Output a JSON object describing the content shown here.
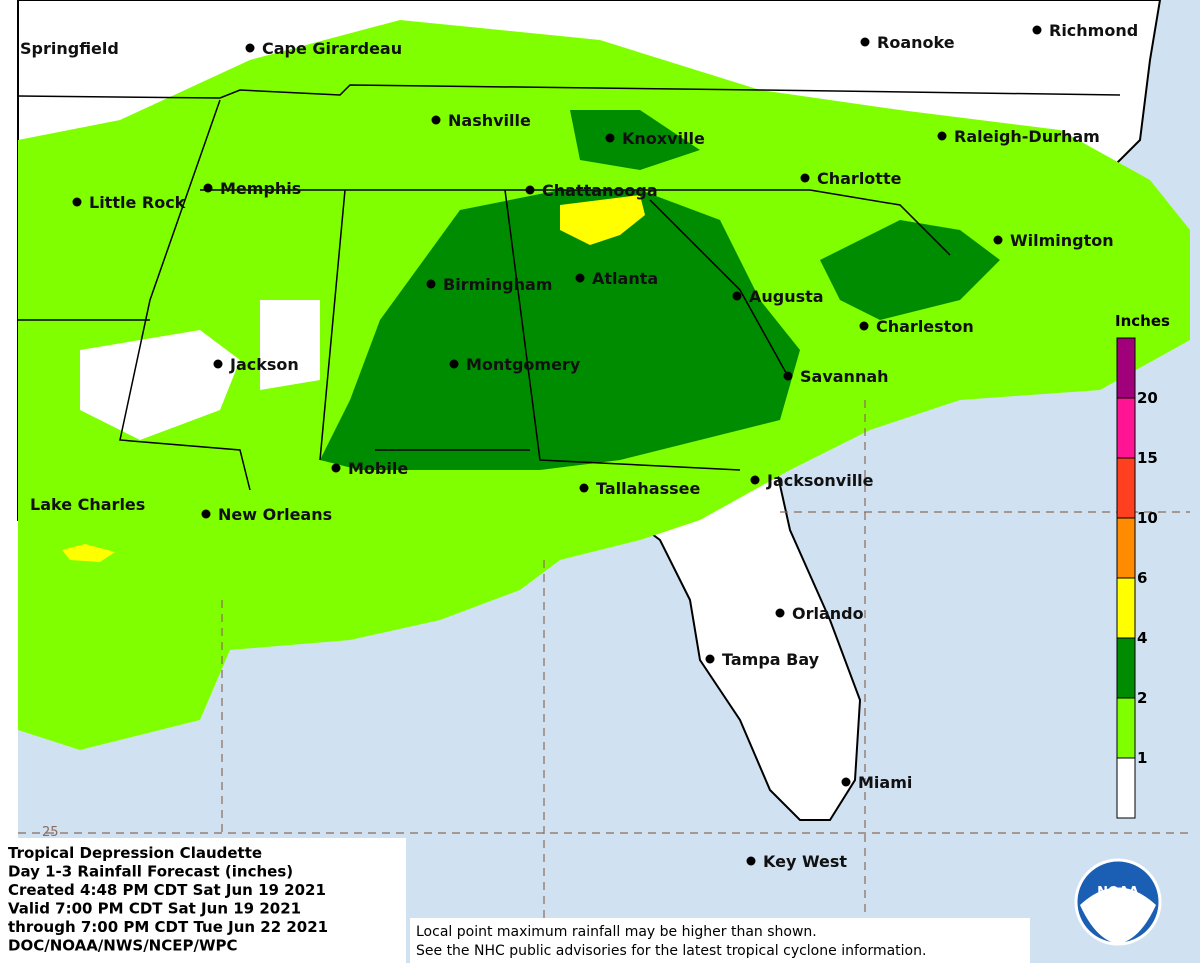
{
  "cities": [
    "Springfield",
    "Cape Girardeau",
    "Roanoke",
    "Richmond",
    "Nashville",
    "Knoxville",
    "Raleigh-Durham",
    "Memphis",
    "Little Rock",
    "Chattanooga",
    "Charlotte",
    "Wilmington",
    "Birmingham",
    "Atlanta",
    "Augusta",
    "Charleston",
    "Jackson",
    "Montgomery",
    "Savannah",
    "Mobile",
    "Jacksonville",
    "Tallahassee",
    "Lake Charles",
    "New Orleans",
    "Orlando",
    "Tampa Bay",
    "Miami",
    "Key West"
  ],
  "latitude_label": "25",
  "legend": {
    "title": "Inches",
    "labels": [
      "1",
      "2",
      "4",
      "6",
      "10",
      "15",
      "20"
    ],
    "colors": [
      "#ffffff",
      "#7fff00",
      "#008c00",
      "#ffff00",
      "#ff8c00",
      "#ff4020",
      "#ff1493",
      "#a0007a"
    ]
  },
  "info": [
    "Tropical Depression Claudette",
    "Day 1-3 Rainfall Forecast (inches)",
    "Created 4:48 PM CDT Sat Jun 19 2021",
    "Valid 7:00 PM CDT Sat Jun 19 2021",
    "through 7:00 PM CDT Tue Jun 22 2021",
    "DOC/NOAA/NWS/NCEP/WPC"
  ],
  "disclaimer": [
    "Local point maximum rainfall may be higher than shown.",
    "See the NHC public advisories for the latest tropical cyclone information."
  ],
  "logo": "NOAA"
}
